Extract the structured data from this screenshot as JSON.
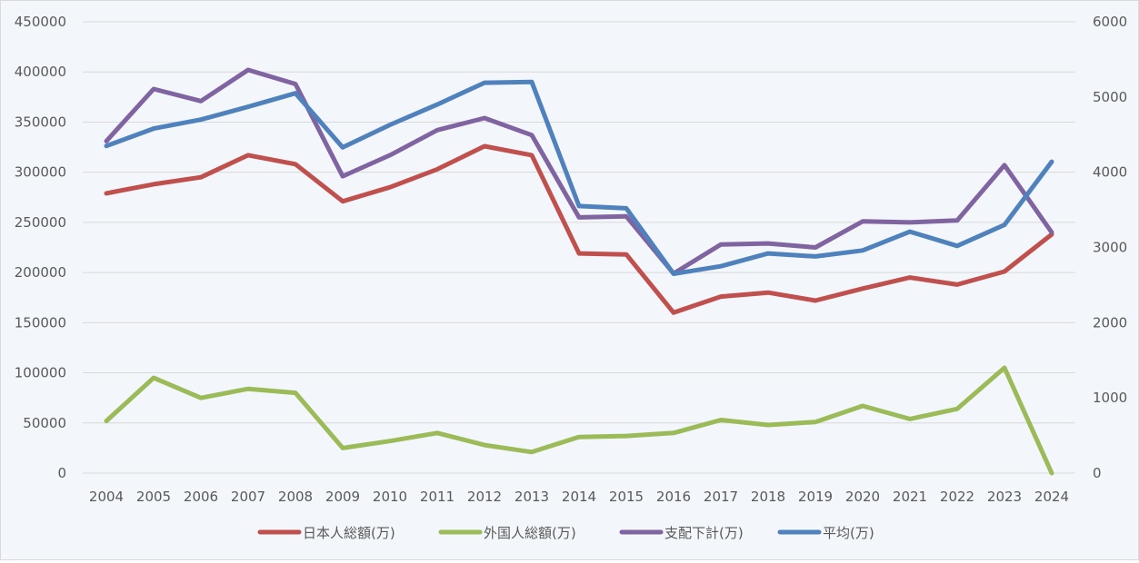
{
  "chart_data": {
    "type": "line",
    "categories": [
      "2004",
      "2005",
      "2006",
      "2007",
      "2008",
      "2009",
      "2010",
      "2011",
      "2012",
      "2013",
      "2014",
      "2015",
      "2016",
      "2017",
      "2018",
      "2019",
      "2020",
      "2021",
      "2022",
      "2023",
      "2024"
    ],
    "left_axis": {
      "ylim": [
        0,
        450000
      ],
      "ticks": [
        "0",
        "50000",
        "100000",
        "150000",
        "200000",
        "250000",
        "300000",
        "350000",
        "400000",
        "450000"
      ]
    },
    "right_axis": {
      "ylim": [
        0,
        6000
      ],
      "ticks": [
        "0",
        "1000",
        "2000",
        "3000",
        "4000",
        "5000",
        "6000"
      ]
    },
    "grid": true,
    "legend_position": "bottom",
    "series": [
      {
        "name": "日本人総額(万)",
        "axis": "left",
        "color": "#c0504d",
        "values": [
          279000,
          288000,
          295000,
          317000,
          308000,
          271000,
          285000,
          303000,
          326000,
          317000,
          219000,
          218000,
          160000,
          176000,
          180000,
          172000,
          184000,
          195000,
          188000,
          201000,
          238000
        ]
      },
      {
        "name": "外国人総額(万)",
        "axis": "left",
        "color": "#9bbb59",
        "values": [
          52000,
          95000,
          75000,
          84000,
          80000,
          25000,
          32000,
          40000,
          28000,
          21000,
          36000,
          37000,
          40000,
          53000,
          48000,
          51000,
          67000,
          54000,
          64000,
          105000,
          0
        ]
      },
      {
        "name": "支配下計(万)",
        "axis": "left",
        "color": "#8064a2",
        "values": [
          331000,
          383000,
          371000,
          402000,
          388000,
          296000,
          317000,
          342000,
          354000,
          337000,
          255000,
          256000,
          199000,
          228000,
          229000,
          225000,
          251000,
          250000,
          252000,
          307000,
          240000
        ]
      },
      {
        "name": "平均(万)",
        "axis": "right",
        "color": "#4f81bd",
        "values": [
          4350,
          4580,
          4700,
          4870,
          5050,
          4330,
          4630,
          4900,
          5190,
          5200,
          3550,
          3520,
          2650,
          2750,
          2920,
          2880,
          2960,
          3210,
          3020,
          3300,
          4140
        ]
      }
    ]
  }
}
